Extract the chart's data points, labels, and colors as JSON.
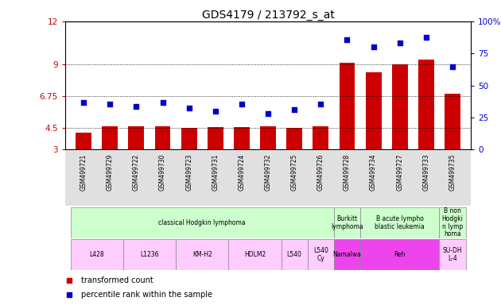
{
  "title": "GDS4179 / 213792_s_at",
  "samples": [
    "GSM499721",
    "GSM499729",
    "GSM499722",
    "GSM499730",
    "GSM499723",
    "GSM499731",
    "GSM499724",
    "GSM499732",
    "GSM499725",
    "GSM499726",
    "GSM499728",
    "GSM499734",
    "GSM499727",
    "GSM499733",
    "GSM499735"
  ],
  "bar_values": [
    4.2,
    4.6,
    4.6,
    4.65,
    4.5,
    4.55,
    4.55,
    4.6,
    4.5,
    4.6,
    9.1,
    8.4,
    9.0,
    9.3,
    6.9
  ],
  "dot_values": [
    6.3,
    6.2,
    6.0,
    6.3,
    5.9,
    5.7,
    6.2,
    5.5,
    5.8,
    6.2,
    10.7,
    10.2,
    10.5,
    10.9,
    8.8
  ],
  "bar_color": "#cc0000",
  "dot_color": "#0000cc",
  "ylim_left": [
    3,
    12
  ],
  "ylim_right": [
    0,
    100
  ],
  "yticks_left": [
    3,
    4.5,
    6.75,
    9,
    12
  ],
  "ytick_labels_left": [
    "3",
    "4.5",
    "6.75",
    "9",
    "12"
  ],
  "yticks_right": [
    0,
    25,
    50,
    75,
    100
  ],
  "ytick_labels_right": [
    "0",
    "25",
    "50",
    "75",
    "100%"
  ],
  "hlines": [
    4.5,
    6.75,
    9
  ],
  "disease_state_groups": [
    {
      "label": "classical Hodgkin lymphoma",
      "start": 0,
      "end": 9,
      "color": "#ccffcc"
    },
    {
      "label": "Burkitt\nlymphoma",
      "start": 10,
      "end": 10,
      "color": "#ccffcc"
    },
    {
      "label": "B acute lympho\nblastic leukemia",
      "start": 11,
      "end": 13,
      "color": "#ccffcc"
    },
    {
      "label": "B non\nHodgki\nn lymp\nhoma",
      "start": 14,
      "end": 14,
      "color": "#ccffcc"
    }
  ],
  "cell_line_groups": [
    {
      "label": "L428",
      "start": 0,
      "end": 1,
      "color": "#ffccff"
    },
    {
      "label": "L1236",
      "start": 2,
      "end": 3,
      "color": "#ffccff"
    },
    {
      "label": "KM-H2",
      "start": 4,
      "end": 5,
      "color": "#ffccff"
    },
    {
      "label": "HDLM2",
      "start": 6,
      "end": 7,
      "color": "#ffccff"
    },
    {
      "label": "L540",
      "start": 8,
      "end": 8,
      "color": "#ffccff"
    },
    {
      "label": "L540\nCy",
      "start": 9,
      "end": 9,
      "color": "#ffccff"
    },
    {
      "label": "Namalwa",
      "start": 10,
      "end": 10,
      "color": "#ee44ee"
    },
    {
      "label": "Reh",
      "start": 11,
      "end": 13,
      "color": "#ee44ee"
    },
    {
      "label": "SU-DH\nL-4",
      "start": 14,
      "end": 14,
      "color": "#ffccff"
    }
  ],
  "legend_items": [
    {
      "label": "transformed count",
      "color": "#cc0000"
    },
    {
      "label": "percentile rank within the sample",
      "color": "#0000cc"
    }
  ]
}
